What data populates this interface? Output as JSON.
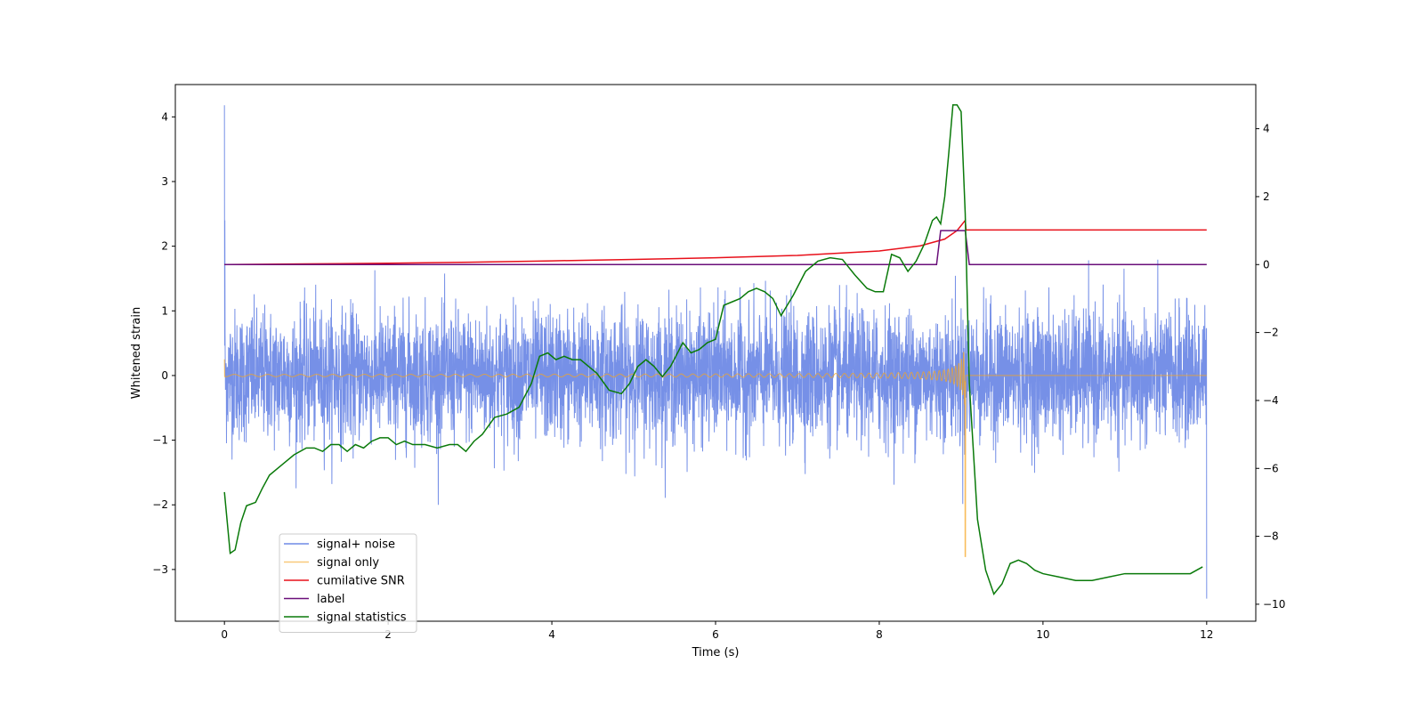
{
  "chart_data": {
    "type": "line",
    "title": "",
    "xlabel": "Time (s)",
    "ylabel": "Whitened strain",
    "y2label": "",
    "xlim": [
      -0.6,
      12.6
    ],
    "ylim": [
      -3.8,
      4.5
    ],
    "y2lim": [
      -10.5,
      5.3
    ],
    "xticks": [
      0,
      2,
      4,
      6,
      8,
      10,
      12
    ],
    "yticks": [
      -3,
      -2,
      -1,
      0,
      1,
      2,
      3,
      4
    ],
    "y2ticks": [
      -10,
      -8,
      -6,
      -4,
      -2,
      0,
      2,
      4
    ],
    "grid": false,
    "legend_position": "lower-left",
    "series": [
      {
        "name": "signal+ noise",
        "color": "#6f8ae6",
        "axis": "left",
        "x_range": [
          0,
          12
        ],
        "description_values": {
          "typical_amplitude_range": [
            -1.5,
            1.5
          ],
          "max": 4.18,
          "min": -3.45
        }
      },
      {
        "name": "signal only",
        "color": "#f5a623",
        "axis": "left",
        "x_range": [
          0,
          12
        ],
        "merger_time": 9.05,
        "peak_amplitude": 1.3,
        "min_amplitude": -2.8
      },
      {
        "name": "cumilative SNR",
        "color": "#e8101a",
        "axis": "right",
        "x": [
          0,
          1,
          2,
          3,
          4,
          5,
          6,
          7,
          8,
          8.5,
          8.8,
          8.95,
          9.05,
          9.06,
          12
        ],
        "values": [
          0,
          0.02,
          0.04,
          0.07,
          0.11,
          0.15,
          0.2,
          0.27,
          0.4,
          0.55,
          0.75,
          1.0,
          1.3,
          1.02,
          1.02
        ]
      },
      {
        "name": "label",
        "color": "#6a0f7a",
        "axis": "right",
        "x": [
          0,
          8.7,
          8.75,
          9.05,
          9.1,
          12
        ],
        "values": [
          0,
          0,
          1,
          1,
          0,
          0
        ]
      },
      {
        "name": "signal statistics",
        "color": "#0a7a0a",
        "axis": "right",
        "x": [
          0,
          0.07,
          0.13,
          0.2,
          0.27,
          0.38,
          0.46,
          0.55,
          0.7,
          0.85,
          1.0,
          1.1,
          1.2,
          1.3,
          1.4,
          1.5,
          1.6,
          1.7,
          1.8,
          1.9,
          2.0,
          2.1,
          2.2,
          2.3,
          2.45,
          2.6,
          2.75,
          2.85,
          2.95,
          3.05,
          3.15,
          3.3,
          3.45,
          3.6,
          3.75,
          3.85,
          3.95,
          4.05,
          4.15,
          4.25,
          4.35,
          4.45,
          4.55,
          4.7,
          4.85,
          4.95,
          5.05,
          5.15,
          5.25,
          5.35,
          5.45,
          5.6,
          5.7,
          5.8,
          5.9,
          6.0,
          6.1,
          6.2,
          6.3,
          6.4,
          6.5,
          6.6,
          6.7,
          6.8,
          6.95,
          7.1,
          7.25,
          7.4,
          7.55,
          7.7,
          7.85,
          7.95,
          8.05,
          8.15,
          8.25,
          8.35,
          8.45,
          8.55,
          8.65,
          8.7,
          8.75,
          8.8,
          8.85,
          8.9,
          8.95,
          9.0,
          9.05,
          9.1,
          9.2,
          9.3,
          9.4,
          9.5,
          9.6,
          9.7,
          9.8,
          9.9,
          10.0,
          10.2,
          10.4,
          10.6,
          10.8,
          11.0,
          11.2,
          11.4,
          11.6,
          11.8,
          11.95
        ],
        "values": [
          -6.7,
          -8.5,
          -8.4,
          -7.6,
          -7.1,
          -7.0,
          -6.6,
          -6.2,
          -5.9,
          -5.6,
          -5.4,
          -5.4,
          -5.5,
          -5.3,
          -5.3,
          -5.5,
          -5.3,
          -5.4,
          -5.2,
          -5.1,
          -5.1,
          -5.3,
          -5.2,
          -5.3,
          -5.3,
          -5.4,
          -5.3,
          -5.3,
          -5.5,
          -5.2,
          -5.0,
          -4.5,
          -4.4,
          -4.2,
          -3.5,
          -2.7,
          -2.6,
          -2.8,
          -2.7,
          -2.8,
          -2.8,
          -3.0,
          -3.2,
          -3.7,
          -3.8,
          -3.5,
          -3.0,
          -2.8,
          -3.0,
          -3.3,
          -3.0,
          -2.3,
          -2.6,
          -2.5,
          -2.3,
          -2.2,
          -1.2,
          -1.1,
          -1.0,
          -0.8,
          -0.7,
          -0.8,
          -1.0,
          -1.5,
          -0.9,
          -0.2,
          0.1,
          0.2,
          0.15,
          -0.3,
          -0.7,
          -0.8,
          -0.8,
          0.3,
          0.2,
          -0.2,
          0.1,
          0.6,
          1.3,
          1.4,
          1.2,
          2.0,
          3.3,
          4.7,
          4.7,
          4.5,
          1.5,
          -3.5,
          -7.5,
          -9.0,
          -9.7,
          -9.4,
          -8.8,
          -8.7,
          -8.8,
          -9.0,
          -9.1,
          -9.2,
          -9.3,
          -9.3,
          -9.2,
          -9.1,
          -9.1,
          -9.1,
          -9.1,
          -9.1,
          -8.9
        ]
      }
    ]
  }
}
